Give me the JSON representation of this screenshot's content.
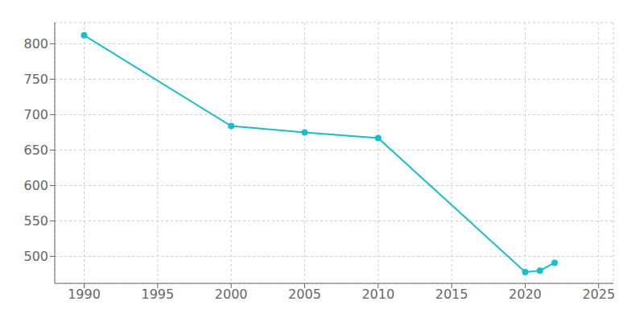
{
  "chart_data": {
    "type": "line",
    "x": [
      1990,
      2000,
      2005,
      2010,
      2020,
      2021,
      2022
    ],
    "values": [
      812,
      684,
      675,
      667,
      478,
      480,
      491
    ],
    "color": "#17BECF",
    "marker": "circle",
    "xlim": [
      1988,
      2026
    ],
    "ylim": [
      462,
      830
    ],
    "xticks": [
      1990,
      1995,
      2000,
      2005,
      2010,
      2015,
      2020,
      2025
    ],
    "yticks": [
      500,
      550,
      600,
      650,
      700,
      750,
      800
    ],
    "grid": true
  }
}
